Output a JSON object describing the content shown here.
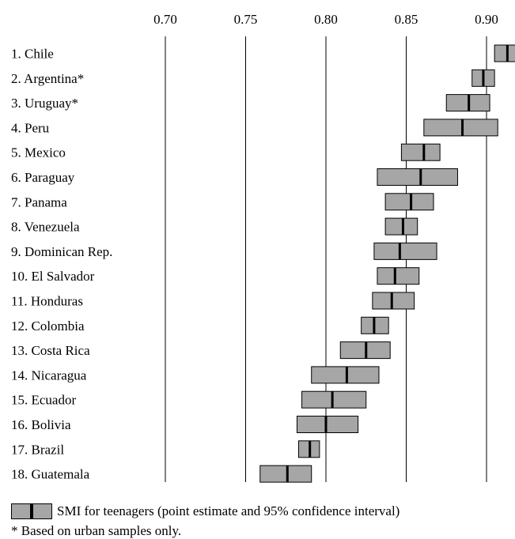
{
  "chart_data": {
    "type": "interval",
    "x_ticks": [
      "0.70",
      "0.75",
      "0.80",
      "0.85",
      "0.90"
    ],
    "xlim": [
      0.68,
      0.92
    ],
    "grid": true,
    "categories": [
      "1. Chile",
      "2. Argentina*",
      "3. Uruguay*",
      "4. Peru",
      "5. Mexico",
      "6. Paraguay",
      "7. Panama",
      "8. Venezuela",
      "9. Dominican Rep.",
      "10. El Salvador",
      "11. Honduras",
      "12. Colombia",
      "13. Costa Rica",
      "14. Nicaragua",
      "15. Ecuador",
      "16. Bolivia",
      "17. Brazil",
      "18. Guatemala"
    ],
    "series": [
      {
        "estimate": [
          0.913,
          0.898,
          0.889,
          0.885,
          0.861,
          0.859,
          0.853,
          0.848,
          0.846,
          0.843,
          0.841,
          0.83,
          0.825,
          0.813,
          0.804,
          0.8,
          0.79,
          0.776
        ],
        "lower": [
          0.905,
          0.891,
          0.875,
          0.861,
          0.847,
          0.832,
          0.837,
          0.837,
          0.83,
          0.832,
          0.829,
          0.822,
          0.809,
          0.791,
          0.785,
          0.782,
          0.783,
          0.759
        ],
        "upper": [
          0.92,
          0.905,
          0.902,
          0.907,
          0.871,
          0.882,
          0.867,
          0.857,
          0.869,
          0.858,
          0.855,
          0.839,
          0.84,
          0.833,
          0.825,
          0.82,
          0.796,
          0.791
        ]
      }
    ],
    "legend": {
      "text": "SMI for teenagers (point estimate and 95% confidence interval)",
      "placement": "bottom-left"
    },
    "footnote": "* Based on urban samples only."
  }
}
